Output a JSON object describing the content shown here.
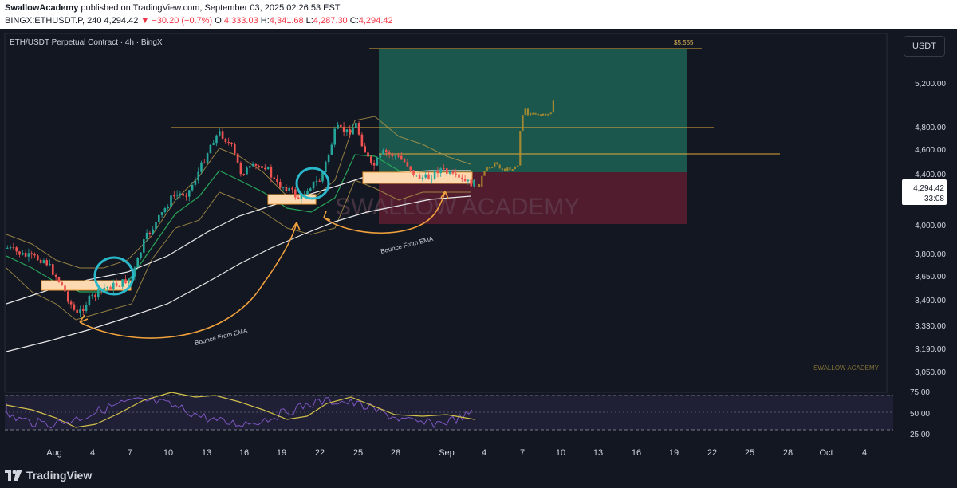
{
  "header": {
    "author": "SwallowAcademy",
    "published_text": "published on TradingView.com, September 03, 2025 02:26:53 EST",
    "symbol": "BINGX:ETHUSDT.P, 240",
    "last_price": "4,294.42",
    "change": "−30.20 (−0.7%)",
    "o_label": "O:",
    "o_value": "4,333.03",
    "h_label": "H:",
    "h_value": "4,341.68",
    "l_label": "L:",
    "l_value": "4,287.30",
    "c_label": "C:",
    "c_value": "4,294.42"
  },
  "chart": {
    "title": "ETH/USDT Perpetual Contract · 4h · BingX",
    "currency_button": "USDT",
    "price_axis": [
      "5,200.00",
      "4,800.00",
      "4,600.00",
      "4,400.00",
      "4,000.00",
      "3,800.00",
      "3,650.00",
      "3,490.00",
      "3,330.00",
      "3,190.00",
      "3,050.00"
    ],
    "current_price": "4,294.42",
    "countdown": "33:08",
    "target_label": "$5,555",
    "watermark": "SWALLOW ACADEMY",
    "watermark_small": "SWALLOW ACADEMY",
    "annotations": [
      "Bounce From EMA",
      "Bounce From EMA"
    ],
    "rsi_axis": [
      "75.00",
      "50.00",
      "25.00"
    ],
    "time_axis": [
      "Aug",
      "4",
      "7",
      "10",
      "13",
      "16",
      "19",
      "22",
      "25",
      "28",
      "Sep",
      "4",
      "7",
      "10",
      "13",
      "16",
      "19",
      "22",
      "25",
      "28",
      "Oct",
      "4"
    ],
    "colors": {
      "bg": "#131722",
      "up": "#26a69a",
      "down": "#ef5350",
      "target_zone": "#1f6e5c",
      "stop_zone": "#6b1f33",
      "level_line": "#e0a83a",
      "highlight_circle": "#2ab7ca",
      "bounce_arrow": "#f0a03c",
      "ema_white": "#e8e8e8",
      "ema_green": "#27a65b",
      "bollinger": "#b59a4a",
      "rsi_line": "#d4c24a",
      "rsi_fill": "#7e57c2"
    }
  },
  "footer": {
    "brand": "TradingView"
  }
}
